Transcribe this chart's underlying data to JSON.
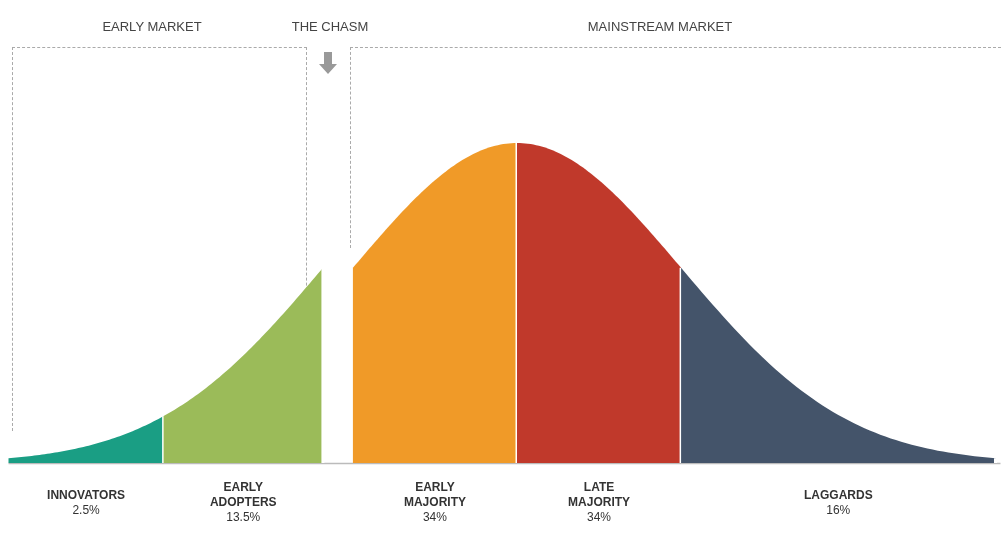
{
  "chart_data": {
    "type": "other",
    "categories": [
      "INNOVATORS",
      "EARLY ADOPTERS",
      "EARLY MAJORITY",
      "LATE MAJORITY",
      "LAGGARDS"
    ],
    "values": [
      2.5,
      13.5,
      34,
      34,
      16
    ],
    "value_labels": [
      "2.5%",
      "13.5%",
      "34%",
      "34%",
      "16%"
    ],
    "colors": [
      "#1a9e84",
      "#9bbb59",
      "#f09a28",
      "#c0392b",
      "#44546a"
    ],
    "annotations": [
      "EARLY MARKET",
      "THE CHASM",
      "MAINSTREAM MARKET"
    ]
  }
}
